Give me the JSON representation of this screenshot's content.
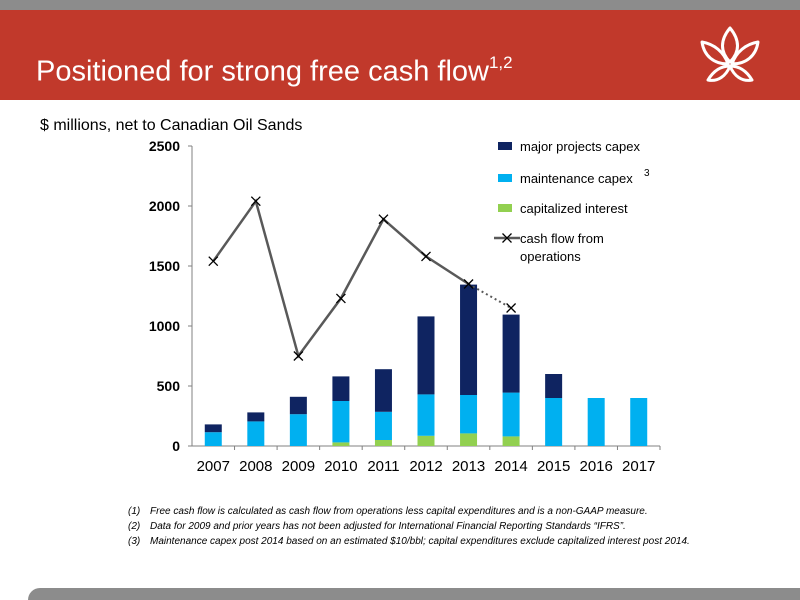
{
  "slide": {
    "title": "Positioned for strong free cash flow",
    "title_superscript": "1,2",
    "subtitle": "$ millions, net to Canadian Oil Sands",
    "footnotes": [
      {
        "num": "(1)",
        "text": "Free cash flow is calculated as cash flow from operations less capital expenditures and is a non-GAAP measure."
      },
      {
        "num": "(2)",
        "text": "Data for 2009 and prior years has not been adjusted for International Financial Reporting Standards “IFRS”."
      },
      {
        "num": "(3)",
        "text": "Maintenance capex post 2014 based on an estimated $10/bbl; capital expenditures exclude capitalized interest post 2014."
      }
    ],
    "colors": {
      "header": "#c1392b",
      "strip": "#8c8c8c"
    }
  },
  "chart_data": {
    "type": "bar",
    "stacked": true,
    "categories": [
      "2007",
      "2008",
      "2009",
      "2010",
      "2011",
      "2012",
      "2013",
      "2014",
      "2015",
      "2016",
      "2017"
    ],
    "yticks": [
      "0",
      "500",
      "1000",
      "1500",
      "2000",
      "2500"
    ],
    "ylim": [
      0,
      2500
    ],
    "series": [
      {
        "name": "capitalized interest",
        "color": "#92d050",
        "values": [
          0,
          0,
          0,
          30,
          50,
          85,
          105,
          80,
          0,
          0,
          0
        ]
      },
      {
        "name": "maintenance capex",
        "color": "#00b0f0",
        "values": [
          115,
          205,
          265,
          345,
          235,
          345,
          320,
          365,
          400,
          400,
          400
        ]
      },
      {
        "name": "major projects capex",
        "color": "#0f2461",
        "values": [
          65,
          75,
          145,
          205,
          355,
          650,
          920,
          650,
          200,
          0,
          0
        ]
      }
    ],
    "line_series": {
      "name": "cash flow from operations",
      "name_lines": [
        "cash flow from",
        "operations"
      ],
      "color": "#595959",
      "values": [
        1540,
        2040,
        750,
        1230,
        1890,
        1580,
        1350,
        1150
      ],
      "dotted_from_index": 6
    },
    "legend": {
      "position": "top-right",
      "entries": [
        {
          "lines": [
            "major projects capex"
          ],
          "color": "#0f2461",
          "kind": "bar"
        },
        {
          "lines": [
            "maintenance capex"
          ],
          "sup": "3",
          "color": "#00b0f0",
          "kind": "bar"
        },
        {
          "lines": [
            "capitalized interest"
          ],
          "color": "#92d050",
          "kind": "bar"
        },
        {
          "lines": [
            "cash flow from",
            "operations"
          ],
          "color": "#595959",
          "kind": "line"
        }
      ]
    },
    "grid": false
  }
}
